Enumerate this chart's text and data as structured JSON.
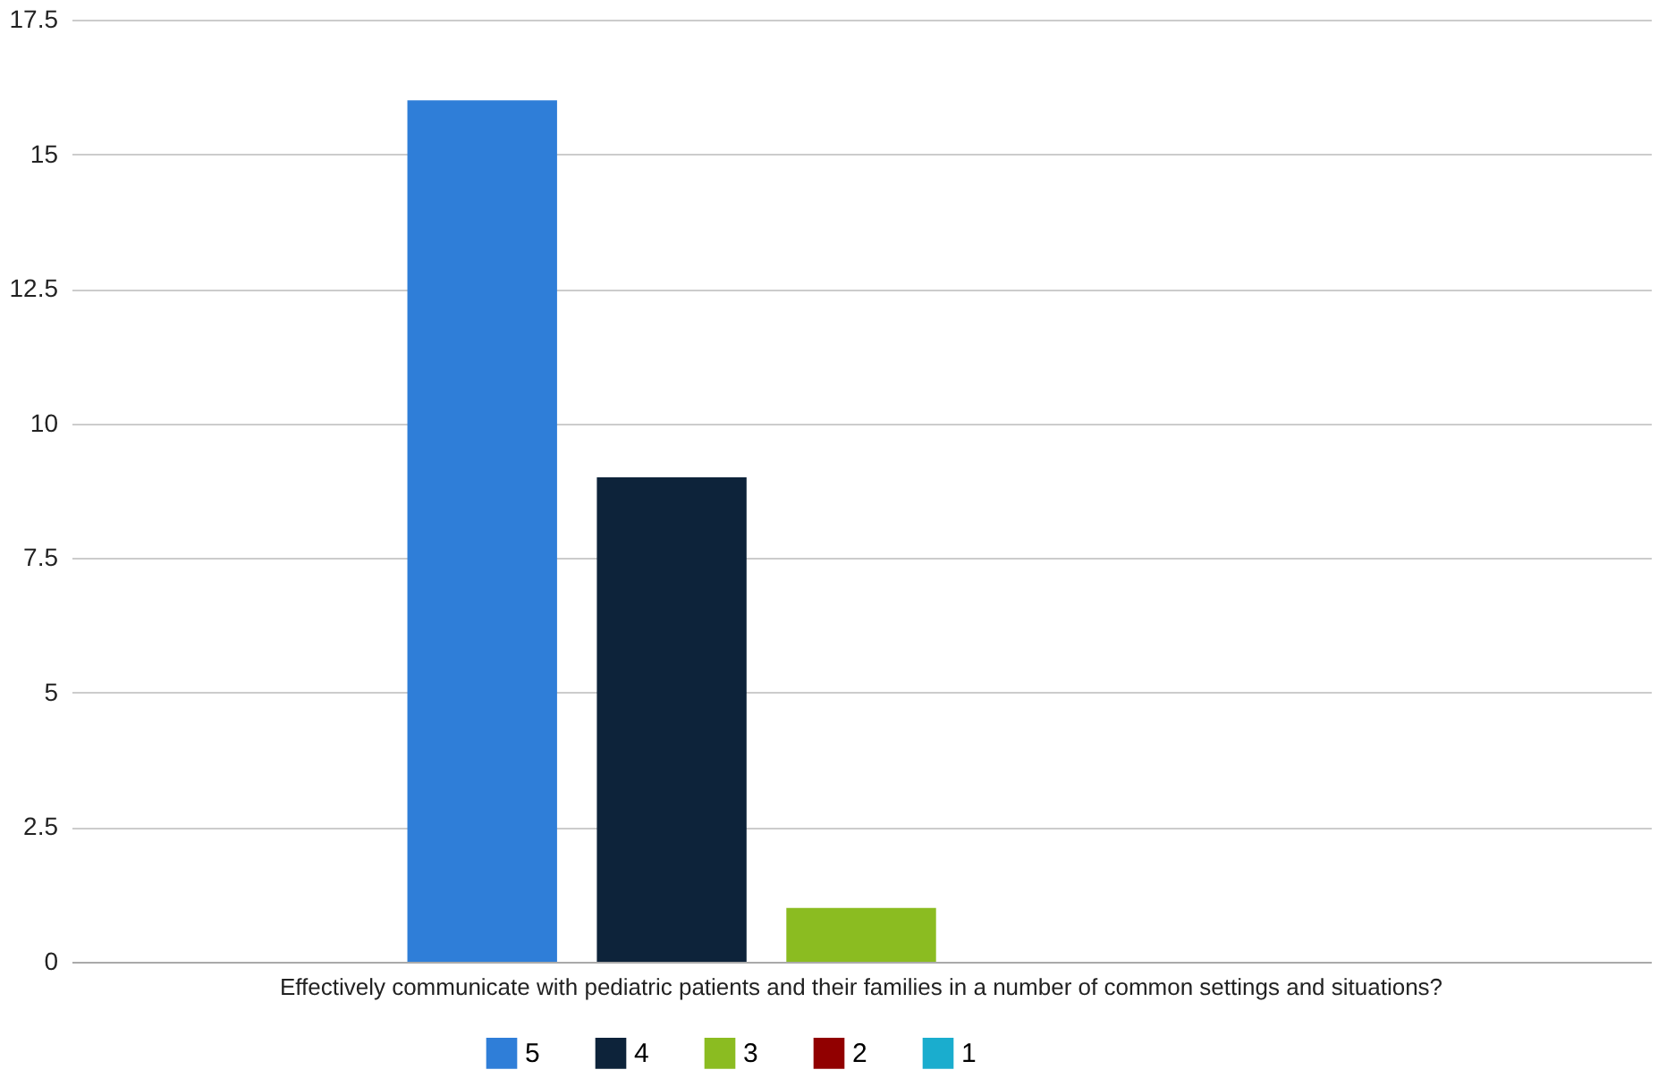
{
  "chart_data": {
    "type": "bar",
    "categories": [
      "Effectively communicate with pediatric patients and their families in a number of common settings and situations?"
    ],
    "series": [
      {
        "name": "5",
        "color": "#2f7ed8",
        "values": [
          16
        ]
      },
      {
        "name": "4",
        "color": "#0d233a",
        "values": [
          9
        ]
      },
      {
        "name": "3",
        "color": "#8bbc21",
        "values": [
          1
        ]
      },
      {
        "name": "2",
        "color": "#910000",
        "values": [
          0
        ]
      },
      {
        "name": "1",
        "color": "#1aadce",
        "values": [
          0
        ]
      }
    ],
    "ylim": [
      0,
      17.5
    ],
    "yticks": [
      0,
      2.5,
      5,
      7.5,
      10,
      12.5,
      15,
      17.5
    ],
    "grid": "y",
    "legend": "bottom"
  }
}
